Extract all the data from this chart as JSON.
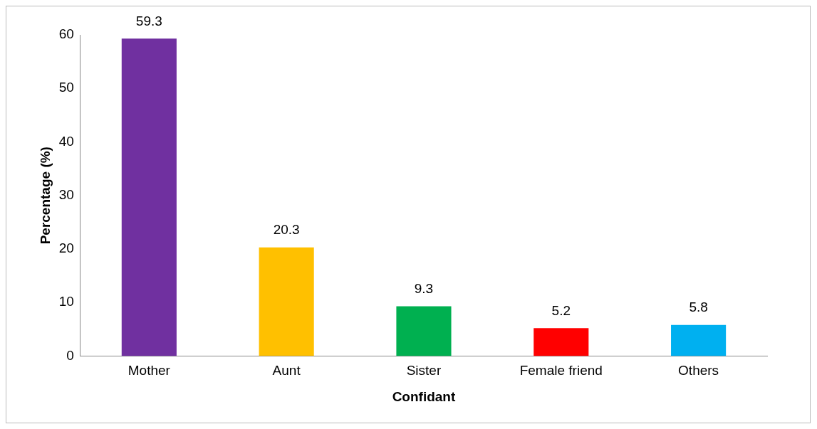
{
  "chart_data": {
    "type": "bar",
    "xlabel": "Confidant",
    "ylabel": "Percentage (%)",
    "categories": [
      "Mother",
      "Aunt",
      "Sister",
      "Female friend",
      "Others"
    ],
    "values": [
      59.3,
      20.3,
      9.3,
      5.2,
      5.8
    ],
    "colors": [
      "#7030a0",
      "#ffc000",
      "#00b050",
      "#ff0000",
      "#00b0f0"
    ],
    "ylim": [
      0,
      60
    ],
    "yticks": [
      0,
      10,
      20,
      30,
      40,
      50,
      60
    ],
    "grid": false,
    "legend": false,
    "data_labels": true
  }
}
